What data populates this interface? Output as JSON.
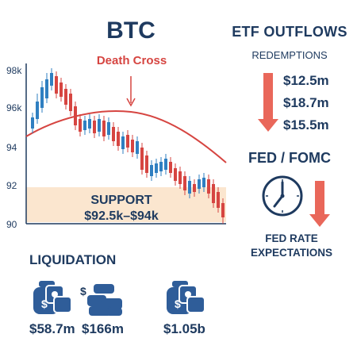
{
  "title": "BTC",
  "chart_data": {
    "type": "candlestick",
    "y_ticks": [
      "98k",
      "96k",
      "94",
      "92",
      "90"
    ],
    "annotations": {
      "death_cross": "Death Cross",
      "support_line1": "SUPPORT",
      "support_line2": "$92.5k–$94k"
    }
  },
  "etf": {
    "title": "ETF OUTFLOWS",
    "subtitle": "REDEMPTIONS",
    "values": [
      "$12.5m",
      "$18.7m",
      "$15.5m"
    ]
  },
  "fed": {
    "title": "FED / FOMC",
    "line1": "FED RATE",
    "line2": "EXPECTATIONS"
  },
  "liquidation": {
    "title": "LIQUIDATION",
    "values": [
      "$58.7m",
      "$166m",
      "$1.05b"
    ]
  },
  "colors": {
    "navy": "#1e3a5f",
    "red": "#d64541",
    "blue": "#2f7fc1",
    "support_band": "#fbe6cf"
  },
  "icons": [
    "money-bag-icon",
    "cash-stack-icon",
    "clock-icon",
    "down-arrow-icon"
  ]
}
